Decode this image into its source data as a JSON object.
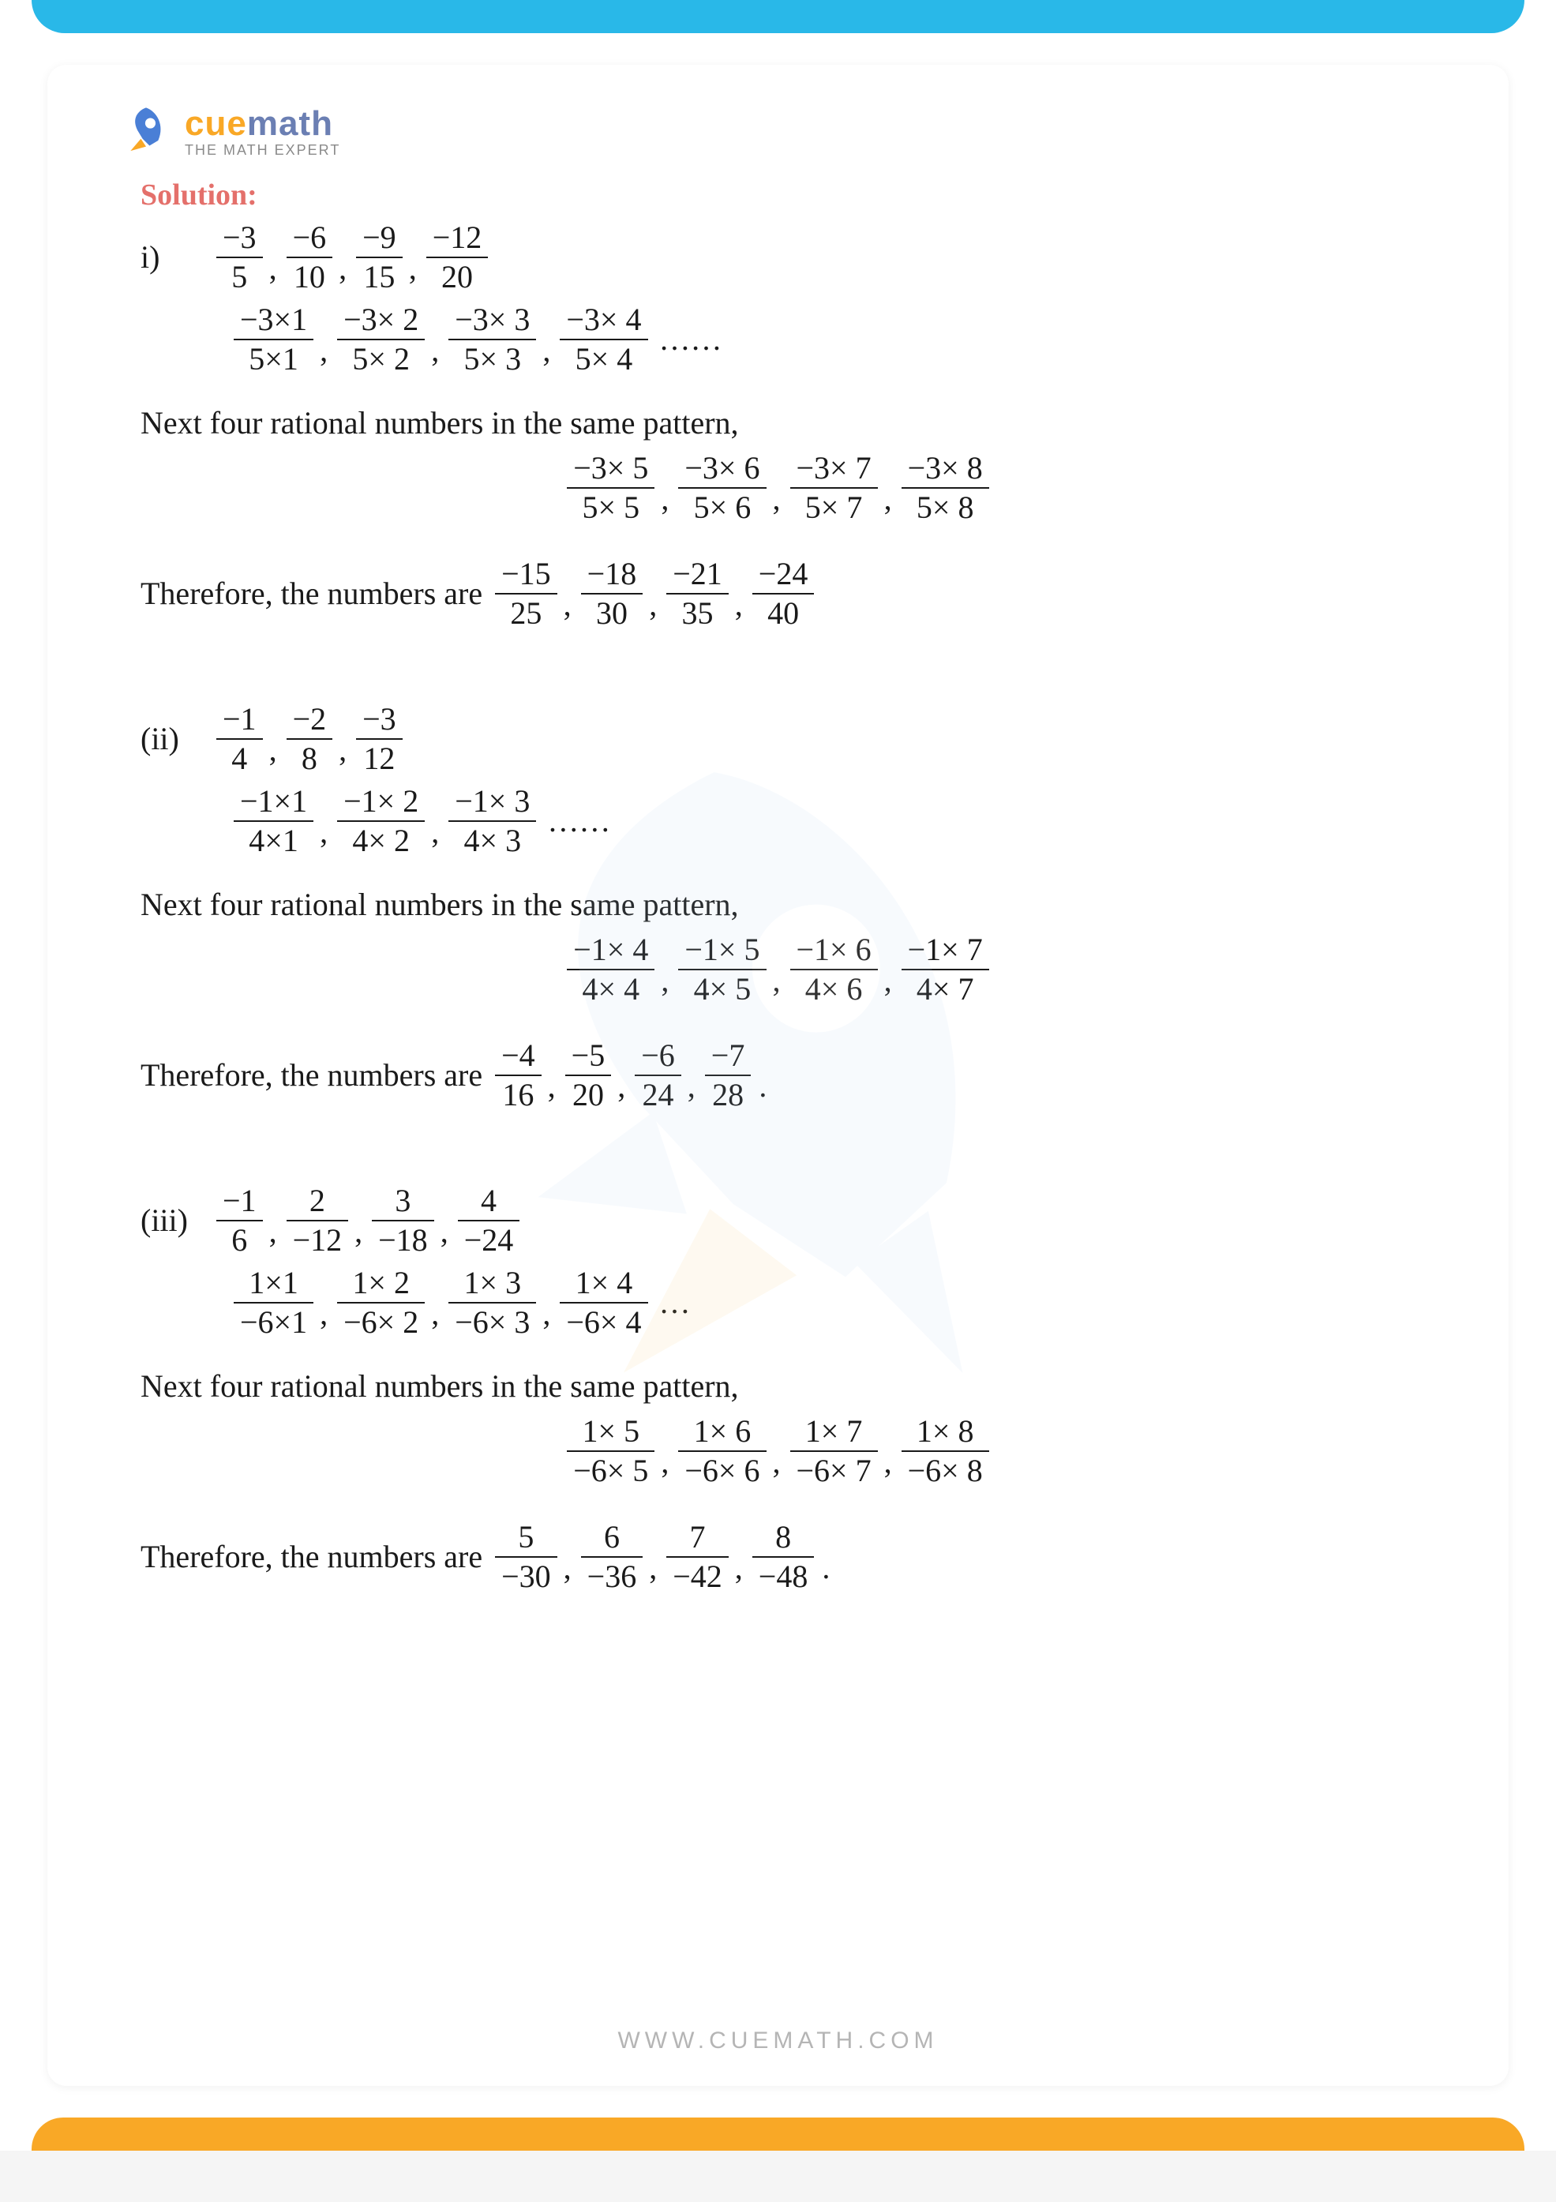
{
  "brand": {
    "part1": "cue",
    "part2": "math",
    "tagline": "THE MATH EXPERT"
  },
  "solution_label": "Solution:",
  "footer": "WWW.CUEMATH.COM",
  "colors": {
    "topbar": "#29b8e8",
    "accent": "#f9a826",
    "solution": "#e4706b",
    "text": "#1a1a1a"
  },
  "sections": [
    {
      "marker": "i)",
      "given": [
        {
          "n": "−3",
          "d": "5"
        },
        {
          "n": "−6",
          "d": "10"
        },
        {
          "n": "−9",
          "d": "15"
        },
        {
          "n": "−12",
          "d": "20"
        }
      ],
      "factor": [
        {
          "n": "−3×1",
          "d": "5×1"
        },
        {
          "n": "−3× 2",
          "d": "5× 2"
        },
        {
          "n": "−3× 3",
          "d": "5× 3"
        },
        {
          "n": "−3× 4",
          "d": "5× 4"
        }
      ],
      "txt_next": "Next four rational numbers in the same pattern,",
      "next": [
        {
          "n": "−3× 5",
          "d": "5× 5"
        },
        {
          "n": "−3× 6",
          "d": "5× 6"
        },
        {
          "n": "−3× 7",
          "d": "5× 7"
        },
        {
          "n": "−3× 8",
          "d": "5× 8"
        }
      ],
      "txt_result": "Therefore, the numbers are",
      "result": [
        {
          "n": "−15",
          "d": "25"
        },
        {
          "n": "−18",
          "d": "30"
        },
        {
          "n": "−21",
          "d": "35"
        },
        {
          "n": "−24",
          "d": "40"
        }
      ],
      "trail": ""
    },
    {
      "marker": "(ii)",
      "given": [
        {
          "n": "−1",
          "d": "4"
        },
        {
          "n": "−2",
          "d": "8"
        },
        {
          "n": "−3",
          "d": "12"
        }
      ],
      "factor": [
        {
          "n": "−1×1",
          "d": "4×1"
        },
        {
          "n": "−1× 2",
          "d": "4× 2"
        },
        {
          "n": "−1× 3",
          "d": "4× 3"
        }
      ],
      "txt_next": "Next four rational numbers in the same pattern,",
      "next": [
        {
          "n": "−1× 4",
          "d": "4× 4"
        },
        {
          "n": "−1× 5",
          "d": "4× 5"
        },
        {
          "n": "−1× 6",
          "d": "4× 6"
        },
        {
          "n": "−1× 7",
          "d": "4× 7"
        }
      ],
      "txt_result": "Therefore, the numbers are",
      "result": [
        {
          "n": "−4",
          "d": "16"
        },
        {
          "n": "−5",
          "d": "20"
        },
        {
          "n": "−6",
          "d": "24"
        },
        {
          "n": "−7",
          "d": "28"
        }
      ],
      "trail": "."
    },
    {
      "marker": "(iii)",
      "given": [
        {
          "n": "−1",
          "d": "6"
        },
        {
          "n": "2",
          "d": "−12"
        },
        {
          "n": "3",
          "d": "−18"
        },
        {
          "n": "4",
          "d": "−24"
        }
      ],
      "factor": [
        {
          "n": "1×1",
          "d": "−6×1"
        },
        {
          "n": "1× 2",
          "d": "−6× 2"
        },
        {
          "n": "1× 3",
          "d": "−6× 3"
        },
        {
          "n": "1× 4",
          "d": "−6× 4"
        }
      ],
      "txt_next": "Next four rational numbers in the same pattern,",
      "next": [
        {
          "n": "1× 5",
          "d": "−6× 5"
        },
        {
          "n": "1× 6",
          "d": "−6× 6"
        },
        {
          "n": "1× 7",
          "d": "−6× 7"
        },
        {
          "n": "1× 8",
          "d": "−6× 8"
        }
      ],
      "txt_result": "Therefore, the numbers are",
      "result": [
        {
          "n": "5",
          "d": "−30"
        },
        {
          "n": "6",
          "d": "−36"
        },
        {
          "n": "7",
          "d": "−42"
        },
        {
          "n": "8",
          "d": "−48"
        }
      ],
      "trail": "."
    }
  ],
  "dots_factor": "……",
  "dots_factor3": "…",
  "comma": ","
}
